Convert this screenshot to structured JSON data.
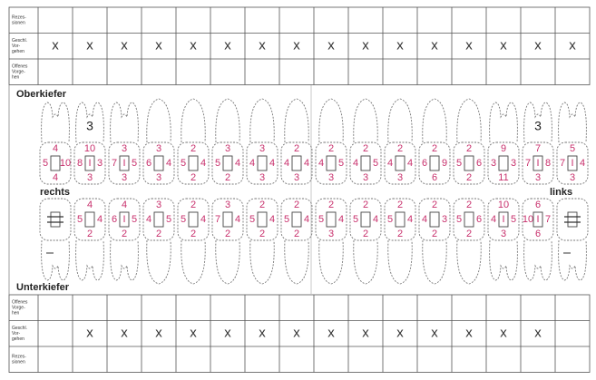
{
  "upper_grid": {
    "labels": [
      [
        "Rezes-",
        "sionen"
      ],
      [
        "Geschl.",
        "Vor-",
        "gehen"
      ],
      [
        "Offenes",
        "Vorge-",
        "hen"
      ]
    ],
    "marks": [
      "x",
      "x",
      "x",
      "x",
      "x",
      "x",
      "x",
      "x",
      "x",
      "x",
      "x",
      "x",
      "x",
      "x",
      "x",
      "x"
    ]
  },
  "upper_jaw": {
    "label": "Oberkiefer",
    "notes": [
      null,
      "3",
      null,
      null,
      null,
      null,
      null,
      null,
      null,
      null,
      null,
      null,
      null,
      null,
      "3",
      null
    ],
    "teeth": [
      {
        "top": 4,
        "left": 5,
        "right": 10,
        "bottom": 4
      },
      {
        "top": 10,
        "left": 8,
        "center": "I",
        "right": 3,
        "bottom": 3
      },
      {
        "top": 3,
        "left": 7,
        "center": "I",
        "right": 5,
        "bottom": 3
      },
      {
        "top": 3,
        "left": 6,
        "right": 4,
        "bottom": 3
      },
      {
        "top": 2,
        "left": 5,
        "right": 4,
        "bottom": 2
      },
      {
        "top": 3,
        "left": 5,
        "right": 4,
        "bottom": 2
      },
      {
        "top": 3,
        "left": 4,
        "right": 4,
        "bottom": 3
      },
      {
        "top": 2,
        "left": 4,
        "right": 4,
        "bottom": 3
      },
      {
        "top": 2,
        "left": 4,
        "right": 5,
        "bottom": 3
      },
      {
        "top": 2,
        "left": 4,
        "right": 5,
        "bottom": 3
      },
      {
        "top": 2,
        "left": 4,
        "right": 4,
        "bottom": 3
      },
      {
        "top": 2,
        "left": 6,
        "right": 9,
        "bottom": 6
      },
      {
        "top": 2,
        "left": 5,
        "right": 6,
        "bottom": 2
      },
      {
        "top": 9,
        "left": 3,
        "right": 3,
        "bottom": 11
      },
      {
        "top": 7,
        "left": 7,
        "center": "I",
        "right": 8,
        "bottom": 3
      },
      {
        "top": 5,
        "left": 7,
        "center": "I",
        "right": 4,
        "bottom": 3
      }
    ]
  },
  "side_labels": {
    "right": "rechts",
    "left": "links"
  },
  "lower_jaw": {
    "label": "Unterkiefer",
    "teeth": [
      null,
      {
        "top": 4,
        "left": 5,
        "right": 4,
        "bottom": 2
      },
      {
        "top": 4,
        "left": 6,
        "center": "I",
        "right": 5,
        "bottom": 2
      },
      {
        "top": 3,
        "left": 4,
        "right": 5,
        "bottom": 2
      },
      {
        "top": 2,
        "left": 5,
        "right": 4,
        "bottom": 2
      },
      {
        "top": 3,
        "left": 7,
        "right": 4,
        "bottom": 2
      },
      {
        "top": 2,
        "left": 5,
        "right": 4,
        "bottom": 2
      },
      {
        "top": 2,
        "left": 5,
        "right": 4,
        "bottom": 2
      },
      {
        "top": 2,
        "left": 5,
        "right": 4,
        "bottom": 3
      },
      {
        "top": 2,
        "left": 5,
        "right": 4,
        "bottom": 2
      },
      {
        "top": 2,
        "left": 5,
        "right": 4,
        "bottom": 2
      },
      {
        "top": 2,
        "left": 4,
        "right": 3,
        "bottom": 2
      },
      {
        "top": 2,
        "left": 5,
        "right": 6,
        "bottom": 2
      },
      {
        "top": 10,
        "left": 4,
        "center": "I",
        "right": 5,
        "bottom": 3
      },
      {
        "top": 6,
        "left": 10,
        "center": "I",
        "right": 7,
        "bottom": 6
      },
      null
    ]
  },
  "lower_grid": {
    "labels": [
      [
        "Offenes",
        "Vorge-",
        "hen"
      ],
      [
        "Geschl.",
        "Vor-",
        "gehen"
      ],
      [
        "Rezes-",
        "sionen"
      ]
    ],
    "marks": [
      null,
      "x",
      "x",
      "x",
      "x",
      "x",
      "x",
      "x",
      "x",
      "x",
      "x",
      "x",
      "x",
      "x",
      "x",
      null
    ]
  }
}
